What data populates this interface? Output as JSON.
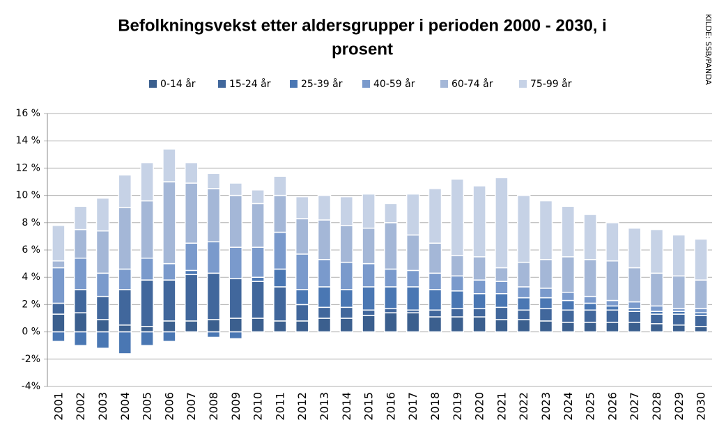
{
  "chart_data": {
    "type": "bar",
    "stacked": true,
    "title": [
      "Befolkningsvekst etter aldersgrupper i perioden 2000 - 2030, i",
      "prosent"
    ],
    "source": "KILDE: SSB/PANDA",
    "categories": [
      "2001",
      "2002",
      "2003",
      "2004",
      "2005",
      "2006",
      "2007",
      "2008",
      "2009",
      "2010",
      "2011",
      "2012",
      "2013",
      "2014",
      "2015",
      "2016",
      "2017",
      "2018",
      "2019",
      "2020",
      "2021",
      "2022",
      "2023",
      "2024",
      "2025",
      "2026",
      "2027",
      "2028",
      "2029",
      "2030"
    ],
    "series": [
      {
        "name": "0-14 år",
        "color": "#3b5f8e",
        "values": [
          1.3,
          1.4,
          0.9,
          0.5,
          0.4,
          0.8,
          0.8,
          0.9,
          1.0,
          1.0,
          0.8,
          0.8,
          1.0,
          1.0,
          1.2,
          1.4,
          1.4,
          1.1,
          1.1,
          1.1,
          0.9,
          0.9,
          0.8,
          0.7,
          0.7,
          0.7,
          0.7,
          0.6,
          0.5,
          0.4
        ]
      },
      {
        "name": "15-24 år",
        "color": "#41679c",
        "values": [
          0.8,
          1.7,
          1.7,
          2.6,
          3.4,
          3.0,
          3.4,
          3.4,
          2.9,
          2.7,
          2.5,
          1.2,
          0.8,
          0.8,
          0.4,
          0.3,
          0.2,
          0.5,
          0.6,
          0.6,
          0.9,
          0.7,
          0.9,
          0.9,
          0.9,
          0.9,
          0.8,
          0.7,
          0.8,
          0.8
        ]
      },
      {
        "name": "25-39 år",
        "color": "#4a77b3",
        "values": [
          -0.7,
          -1.0,
          -1.2,
          -1.6,
          -1.0,
          -0.7,
          0.3,
          -0.4,
          -0.5,
          0.3,
          1.3,
          1.1,
          1.5,
          1.3,
          1.7,
          1.6,
          1.7,
          1.5,
          1.3,
          1.1,
          1.0,
          0.9,
          0.8,
          0.7,
          0.5,
          0.3,
          0.2,
          0.2,
          0.2,
          0.2
        ]
      },
      {
        "name": "40-59 år",
        "color": "#7a9acc",
        "values": [
          2.6,
          2.3,
          1.7,
          1.5,
          1.6,
          1.2,
          2.0,
          2.3,
          2.3,
          2.2,
          2.7,
          2.6,
          2.0,
          2.0,
          1.7,
          1.3,
          1.2,
          1.2,
          1.1,
          1.0,
          0.9,
          0.8,
          0.7,
          0.6,
          0.5,
          0.4,
          0.5,
          0.4,
          0.2,
          0.3
        ]
      },
      {
        "name": "60-74 år",
        "color": "#a4b7d7",
        "values": [
          0.5,
          2.1,
          3.1,
          4.5,
          4.2,
          6.0,
          4.4,
          3.9,
          3.8,
          3.2,
          2.7,
          2.6,
          2.9,
          2.7,
          2.6,
          3.4,
          2.6,
          2.2,
          1.5,
          1.7,
          1.0,
          1.8,
          2.1,
          2.6,
          2.7,
          2.9,
          2.5,
          2.4,
          2.4,
          2.1
        ]
      },
      {
        "name": "75-99 år",
        "color": "#c6d2e6",
        "values": [
          2.6,
          1.7,
          2.4,
          2.4,
          2.8,
          2.4,
          1.5,
          1.1,
          0.9,
          1.0,
          1.4,
          1.6,
          1.8,
          2.1,
          2.5,
          1.4,
          3.0,
          4.0,
          5.6,
          5.2,
          6.6,
          4.9,
          4.3,
          3.7,
          3.3,
          2.8,
          2.9,
          3.2,
          3.0,
          3.0
        ]
      }
    ],
    "ylim": [
      -4,
      16
    ],
    "yticks": [
      {
        "value": -4,
        "label": "-4%"
      },
      {
        "value": -2,
        "label": "-2%"
      },
      {
        "value": 0,
        "label": "0 %"
      },
      {
        "value": 2,
        "label": "2 %"
      },
      {
        "value": 4,
        "label": "4 %"
      },
      {
        "value": 6,
        "label": "6 %"
      },
      {
        "value": 8,
        "label": "8 %"
      },
      {
        "value": 10,
        "label": "10 %"
      },
      {
        "value": 12,
        "label": "12 %"
      },
      {
        "value": 14,
        "label": "14 %"
      },
      {
        "value": 16,
        "label": "16 %"
      }
    ],
    "grid": true,
    "legend": "top"
  }
}
